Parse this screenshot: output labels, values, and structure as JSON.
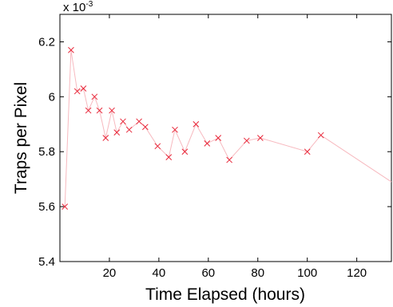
{
  "chart_data": {
    "type": "line",
    "xlabel": "Time Elapsed (hours)",
    "ylabel": "Traps per Pixel",
    "y_scale_base": "x 10",
    "y_scale_exponent": "-3",
    "xlim": [
      0,
      134
    ],
    "ylim": [
      5.4,
      6.3
    ],
    "xticks": [
      20,
      40,
      60,
      80,
      100,
      120
    ],
    "xtick_labels": [
      "20",
      "40",
      "60",
      "80",
      "100",
      "120"
    ],
    "yticks": [
      5.4,
      5.6,
      5.8,
      6.0,
      6.2
    ],
    "ytick_labels": [
      "5.4",
      "5.6",
      "5.8",
      "6",
      "6.2"
    ],
    "grid": false,
    "marker": "x",
    "series_color": "#e8283a",
    "line_color": "#f7b9bf",
    "series": [
      {
        "x": [
          2,
          4.5,
          7,
          9.5,
          11.5,
          14,
          16,
          18.5,
          21,
          23,
          25.5,
          28,
          32,
          34.5,
          39.5,
          44,
          46.5,
          50.5,
          55,
          59.5,
          64,
          68.5,
          75.5,
          81,
          100,
          105.5,
          134
        ],
        "y": [
          5.6,
          6.17,
          6.02,
          6.03,
          5.95,
          6.0,
          5.95,
          5.85,
          5.95,
          5.87,
          5.91,
          5.88,
          5.91,
          5.89,
          5.82,
          5.78,
          5.88,
          5.8,
          5.9,
          5.83,
          5.85,
          5.77,
          5.84,
          5.85,
          5.8,
          5.86,
          5.69
        ],
        "markers": [
          true,
          true,
          true,
          true,
          true,
          true,
          true,
          true,
          true,
          true,
          true,
          true,
          true,
          true,
          true,
          true,
          true,
          true,
          true,
          true,
          true,
          true,
          true,
          true,
          true,
          true,
          false
        ]
      }
    ]
  }
}
